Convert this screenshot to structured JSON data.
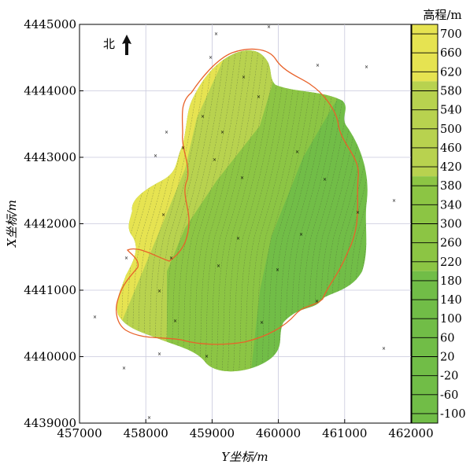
{
  "chart_data": {
    "type": "heatmap",
    "xlabel": "Y坐标/m",
    "ylabel": "X坐标/m",
    "xlim": [
      457000,
      462000
    ],
    "ylim": [
      4439000,
      4445000
    ],
    "x_ticks": [
      457000,
      458000,
      459000,
      460000,
      461000,
      462000
    ],
    "y_ticks": [
      4439000,
      4440000,
      4441000,
      4442000,
      4443000,
      4444000,
      4445000
    ],
    "grid": true,
    "north_label": "北",
    "colorbar": {
      "title": "高程/m",
      "min": -120,
      "max": 720,
      "ticks": [
        700,
        660,
        620,
        580,
        540,
        500,
        460,
        420,
        380,
        340,
        300,
        260,
        220,
        180,
        140,
        100,
        60,
        20,
        -20,
        -60,
        -100
      ],
      "bands": [
        {
          "from": 600,
          "to": 720,
          "color": "#e6e351"
        },
        {
          "from": 400,
          "to": 600,
          "color": "#b8d24f"
        },
        {
          "from": 200,
          "to": 400,
          "color": "#8cc544"
        },
        {
          "from": -120,
          "to": 200,
          "color": "#71bd47"
        }
      ]
    },
    "elevation_zones": [
      {
        "level": 620,
        "color": "#e6e351"
      },
      {
        "level": 500,
        "color": "#b8d24f"
      },
      {
        "level": 300,
        "color": "#8cc544"
      },
      {
        "level": 100,
        "color": "#71bd47"
      }
    ],
    "boundary_color": "#e8622a"
  }
}
